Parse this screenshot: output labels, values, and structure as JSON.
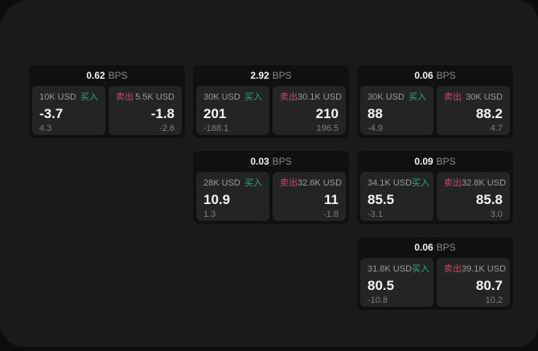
{
  "labels": {
    "bps": "BPS",
    "buy": "买入",
    "sell": "卖出"
  },
  "colors": {
    "backdrop": "#0c0c0c",
    "panel": "#1a1a1b",
    "card": "#101011",
    "subcard": "#232425",
    "buy_green": "#3aa86c",
    "sell_red": "#c84b60",
    "text_primary": "#f5f5f5",
    "text_secondary": "#9b9b9b",
    "text_muted": "#7e7e7e"
  },
  "cards": [
    {
      "bps": "0.62",
      "buy": {
        "size": "10K USD",
        "price": "-3.7",
        "delta": "4.3"
      },
      "sell": {
        "size": "5.5K USD",
        "price": "-1.8",
        "delta": "-2.6"
      }
    },
    {
      "bps": "2.92",
      "buy": {
        "size": "30K USD",
        "price": "201",
        "delta": "-188.1"
      },
      "sell": {
        "size": "30.1K USD",
        "price": "210",
        "delta": "196.5"
      }
    },
    {
      "bps": "0.06",
      "buy": {
        "size": "30K USD",
        "price": "88",
        "delta": "-4.9"
      },
      "sell": {
        "size": "30K USD",
        "price": "88.2",
        "delta": "4.7"
      }
    },
    {
      "bps": "0.03",
      "buy": {
        "size": "28K USD",
        "price": "10.9",
        "delta": "1.3"
      },
      "sell": {
        "size": "32.6K USD",
        "price": "11",
        "delta": "-1.8"
      }
    },
    {
      "bps": "0.09",
      "buy": {
        "size": "34.1K USD",
        "price": "85.5",
        "delta": "-3.1"
      },
      "sell": {
        "size": "32.8K USD",
        "price": "85.8",
        "delta": "3.0"
      }
    },
    {
      "bps": "0.06",
      "buy": {
        "size": "31.8K USD",
        "price": "80.5",
        "delta": "-10.8"
      },
      "sell": {
        "size": "39.1K USD",
        "price": "80.7",
        "delta": "10.2"
      }
    }
  ]
}
